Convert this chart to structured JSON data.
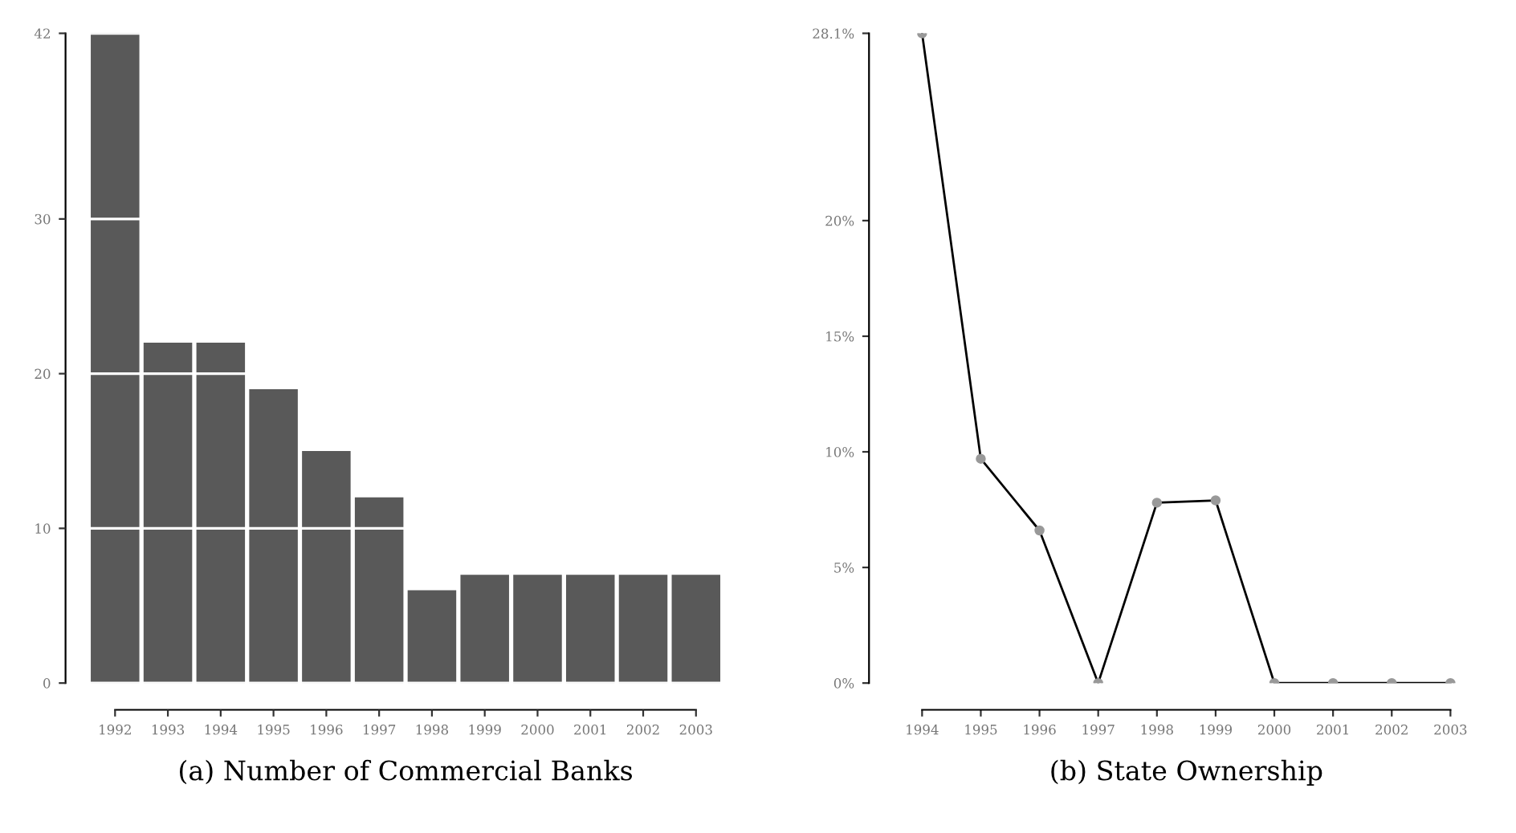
{
  "chart_data": [
    {
      "type": "bar",
      "title": "(a) Number of Commercial Banks",
      "categories": [
        "1992",
        "1993",
        "1994",
        "1995",
        "1996",
        "1997",
        "1998",
        "1999",
        "2000",
        "2001",
        "2002",
        "2003"
      ],
      "values": [
        42,
        22,
        22,
        19,
        15,
        12,
        6,
        7,
        7,
        7,
        7,
        7
      ],
      "color": "#595959",
      "ylim": [
        0,
        42
      ],
      "yticks": [
        0,
        10,
        20,
        30,
        42
      ],
      "grid": "y"
    },
    {
      "type": "line",
      "title": "(b) State Ownership",
      "categories": [
        "1994",
        "1995",
        "1996",
        "1997",
        "1998",
        "1999",
        "2000",
        "2001",
        "2002",
        "2003"
      ],
      "series": [
        {
          "color": "#000000",
          "values": [
            28.1,
            9.7,
            6.6,
            0,
            7.8,
            7.9,
            0,
            0,
            0,
            0
          ]
        }
      ],
      "marker": "circle",
      "line_style": "solid",
      "ylim": [
        0,
        28.1
      ],
      "yticks": [
        {
          "value": 0,
          "label": "0%"
        },
        {
          "value": 5,
          "label": "5%"
        },
        {
          "value": 10,
          "label": "10%"
        },
        {
          "value": 15,
          "label": "15%"
        },
        {
          "value": 20,
          "label": "20%"
        },
        {
          "value": 28.1,
          "label": "28.1%"
        }
      ]
    }
  ]
}
